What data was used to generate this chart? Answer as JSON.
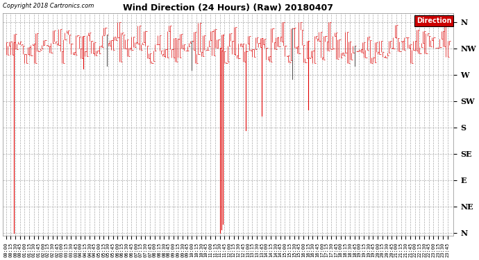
{
  "title": "Wind Direction (24 Hours) (Raw) 20180407",
  "copyright_text": "Copyright 2018 Cartronics.com",
  "background_color": "#ffffff",
  "plot_bg_color": "#ffffff",
  "grid_color": "#aaaaaa",
  "line_color_red": "#dd0000",
  "line_color_dark": "#555555",
  "legend_label": "Direction",
  "legend_bg": "#cc0000",
  "legend_text_color": "#ffffff",
  "y_labels": [
    "N",
    "NW",
    "W",
    "SW",
    "S",
    "SE",
    "E",
    "NE",
    "N"
  ],
  "y_values": [
    360,
    315,
    270,
    225,
    180,
    135,
    90,
    45,
    0
  ],
  "ylim": [
    -5,
    375
  ],
  "num_points": 288,
  "seed": 42
}
